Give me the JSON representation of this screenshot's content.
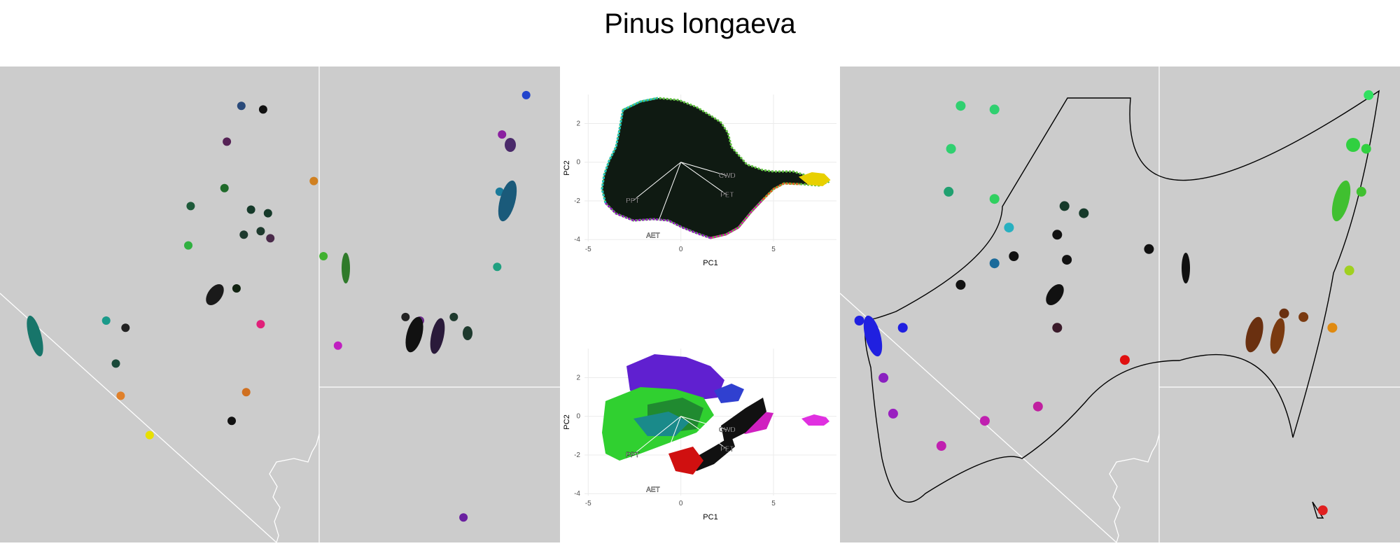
{
  "title": "Pinus longaeva",
  "colors": {
    "land": "#cccccc",
    "border": "#ffffff",
    "hull": "#000000",
    "grid": "#ebebeb"
  },
  "chart_data": [
    {
      "type": "map",
      "name": "left-map",
      "series": [
        {
          "x": -118.3,
          "y": 39.7,
          "color": "#2a4a7a"
        },
        {
          "x": -117.85,
          "y": 39.65,
          "color": "#111111"
        },
        {
          "x": -118.6,
          "y": 39.2,
          "color": "#552255"
        },
        {
          "x": -118.65,
          "y": 38.55,
          "color": "#1f6a2a"
        },
        {
          "x": -119.35,
          "y": 38.3,
          "color": "#1e5a3a"
        },
        {
          "x": -118.1,
          "y": 38.25,
          "color": "#163a2a"
        },
        {
          "x": -117.75,
          "y": 38.2,
          "color": "#163a2a"
        },
        {
          "x": -118.25,
          "y": 37.9,
          "color": "#1e3a2e"
        },
        {
          "x": -117.9,
          "y": 37.95,
          "color": "#1e3a2e"
        },
        {
          "x": -117.7,
          "y": 37.85,
          "color": "#4a2a4a"
        },
        {
          "x": -119.4,
          "y": 37.75,
          "color": "#30b040"
        },
        {
          "x": -118.4,
          "y": 37.15,
          "color": "#112211"
        },
        {
          "x": -117.9,
          "y": 36.65,
          "color": "#e0207a"
        },
        {
          "x": -121.1,
          "y": 36.7,
          "color": "#1a9a8a"
        },
        {
          "x": -120.7,
          "y": 36.6,
          "color": "#222222"
        },
        {
          "x": -120.9,
          "y": 36.1,
          "color": "#1a4a3a"
        },
        {
          "x": -120.8,
          "y": 35.65,
          "color": "#e0802a"
        },
        {
          "x": -118.2,
          "y": 35.7,
          "color": "#d07020"
        },
        {
          "x": -118.5,
          "y": 35.3,
          "color": "#111111"
        },
        {
          "x": -120.2,
          "y": 35.1,
          "color": "#e8e000"
        },
        {
          "x": -112.4,
          "y": 39.85,
          "color": "#2244cc"
        },
        {
          "x": -112.9,
          "y": 39.3,
          "color": "#8a20a0"
        },
        {
          "x": -112.95,
          "y": 38.5,
          "color": "#1a7a9a"
        },
        {
          "x": -116.8,
          "y": 38.65,
          "color": "#d08020"
        },
        {
          "x": -116.6,
          "y": 37.6,
          "color": "#40b030"
        },
        {
          "x": -113.0,
          "y": 37.45,
          "color": "#20a080"
        },
        {
          "x": -114.9,
          "y": 36.75,
          "color": "#222222"
        },
        {
          "x": -114.6,
          "y": 36.7,
          "color": "#6a2a8a"
        },
        {
          "x": -113.9,
          "y": 36.75,
          "color": "#1e3a2e"
        },
        {
          "x": -116.3,
          "y": 36.35,
          "color": "#c020c0"
        },
        {
          "x": -113.7,
          "y": 33.95,
          "color": "#6a20a0"
        }
      ]
    },
    {
      "type": "scatter",
      "name": "pca-top",
      "xlabel": "PC1",
      "ylabel": "PC2",
      "xticks": [
        -5,
        0,
        5
      ],
      "yticks": [
        -4,
        -2,
        0,
        2
      ],
      "xlim": [
        -5.2,
        8.4
      ],
      "ylim": [
        -4.1,
        3.5
      ],
      "vectors": [
        {
          "label": "CWD",
          "x": 2.5,
          "y": -0.7
        },
        {
          "label": "PPT",
          "x": -2.6,
          "y": -2.0
        },
        {
          "label": "PET",
          "x": 2.5,
          "y": -1.7
        },
        {
          "label": "AET",
          "x": -1.5,
          "y": -3.8
        }
      ]
    },
    {
      "type": "scatter",
      "name": "pca-bottom",
      "xlabel": "PC1",
      "ylabel": "PC2",
      "xticks": [
        -5,
        0,
        5
      ],
      "yticks": [
        -4,
        -2,
        0,
        2
      ],
      "xlim": [
        -5.2,
        8.4
      ],
      "ylim": [
        -4.1,
        3.5
      ],
      "vectors": [
        {
          "label": "CWD",
          "x": 2.5,
          "y": -0.7
        },
        {
          "label": "PPT",
          "x": -2.6,
          "y": -2.0
        },
        {
          "label": "PET",
          "x": 2.5,
          "y": -1.7
        },
        {
          "label": "AET",
          "x": -1.5,
          "y": -3.8
        }
      ]
    },
    {
      "type": "map",
      "name": "right-map",
      "series": [
        {
          "x": -120.8,
          "y": 39.7,
          "color": "#30d070"
        },
        {
          "x": -120.1,
          "y": 39.65,
          "color": "#30d070"
        },
        {
          "x": -121.0,
          "y": 39.1,
          "color": "#30d070"
        },
        {
          "x": -121.05,
          "y": 38.5,
          "color": "#20a070"
        },
        {
          "x": -120.1,
          "y": 38.4,
          "color": "#30d060"
        },
        {
          "x": -118.65,
          "y": 38.3,
          "color": "#163a2a"
        },
        {
          "x": -118.25,
          "y": 38.2,
          "color": "#163a2a"
        },
        {
          "x": -119.8,
          "y": 38.0,
          "color": "#28b0c0"
        },
        {
          "x": -118.8,
          "y": 37.9,
          "color": "#111111"
        },
        {
          "x": -119.7,
          "y": 37.6,
          "color": "#111111"
        },
        {
          "x": -118.6,
          "y": 37.55,
          "color": "#111111"
        },
        {
          "x": -120.1,
          "y": 37.5,
          "color": "#1a6a9a"
        },
        {
          "x": -120.8,
          "y": 37.2,
          "color": "#111111"
        },
        {
          "x": -122.9,
          "y": 36.7,
          "color": "#2020e0"
        },
        {
          "x": -122.0,
          "y": 36.6,
          "color": "#2020e0"
        },
        {
          "x": -118.8,
          "y": 36.6,
          "color": "#3a1a2a"
        },
        {
          "x": -122.4,
          "y": 35.9,
          "color": "#8a20c0"
        },
        {
          "x": -122.2,
          "y": 35.4,
          "color": "#9a20c0"
        },
        {
          "x": -119.2,
          "y": 35.5,
          "color": "#c020a0"
        },
        {
          "x": -120.3,
          "y": 35.3,
          "color": "#c020b0"
        },
        {
          "x": -121.2,
          "y": 34.95,
          "color": "#c020b0"
        },
        {
          "x": -117.4,
          "y": 36.15,
          "color": "#e01010"
        },
        {
          "x": -112.35,
          "y": 39.85,
          "color": "#30e060"
        },
        {
          "x": -112.4,
          "y": 39.1,
          "color": "#30d040"
        },
        {
          "x": -112.5,
          "y": 38.5,
          "color": "#40c030"
        },
        {
          "x": -112.75,
          "y": 37.4,
          "color": "#a0d020"
        },
        {
          "x": -116.9,
          "y": 37.7,
          "color": "#111111"
        },
        {
          "x": -114.1,
          "y": 36.8,
          "color": "#6a3010"
        },
        {
          "x": -113.7,
          "y": 36.75,
          "color": "#7a3a10"
        },
        {
          "x": -113.1,
          "y": 36.6,
          "color": "#e08a10"
        },
        {
          "x": -113.3,
          "y": 34.05,
          "color": "#e02020"
        }
      ]
    }
  ]
}
